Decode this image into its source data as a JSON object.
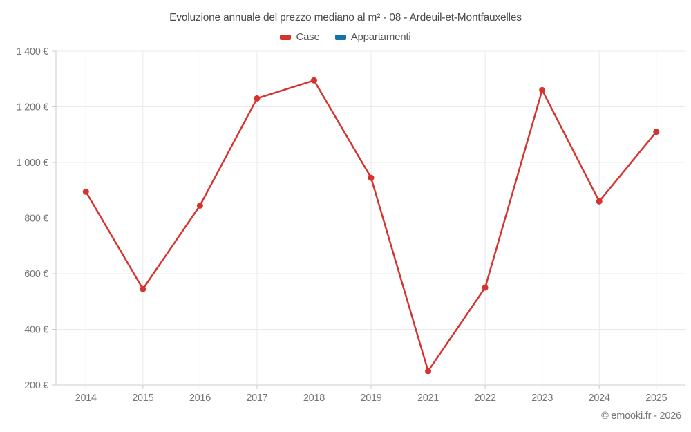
{
  "page": {
    "title": "Evoluzione annuale del prezzo mediano al m² - 08 - Ardeuil-et-Montfauxelles",
    "footer": "© emooki.fr - 2026"
  },
  "legend": {
    "items": [
      {
        "label": "Case",
        "color": "#d4332e"
      },
      {
        "label": "Appartamenti",
        "color": "#1474a8"
      }
    ]
  },
  "chart_data": {
    "type": "line",
    "title": "Evoluzione annuale del prezzo mediano al m² - 08 - Ardeuil-et-Montfauxelles",
    "categories": [
      "2014",
      "2015",
      "2016",
      "2017",
      "2018",
      "2019",
      "2021",
      "2022",
      "2023",
      "2024",
      "2025"
    ],
    "series": [
      {
        "name": "Case",
        "color": "#d4332e",
        "values": [
          895,
          545,
          845,
          1230,
          1295,
          945,
          250,
          550,
          1260,
          860,
          1110
        ]
      },
      {
        "name": "Appartamenti",
        "color": "#1474a8",
        "values": []
      }
    ],
    "xlabel": "",
    "ylabel": "",
    "ylim": [
      200,
      1400
    ],
    "ytick_step": 200,
    "ytick_labels": [
      "200 €",
      "400 €",
      "600 €",
      "800 €",
      "1 000 €",
      "1 200 €",
      "1 400 €"
    ],
    "grid": true,
    "legend_position": "top",
    "marker": "circle"
  },
  "colors": {
    "case_series": "#d4332e",
    "appartamenti_series": "#1474a8",
    "gridline": "#e9e9e9",
    "axis_line": "#cccccc",
    "tick_label": "#757575",
    "title_text": "#4a4a4a"
  }
}
